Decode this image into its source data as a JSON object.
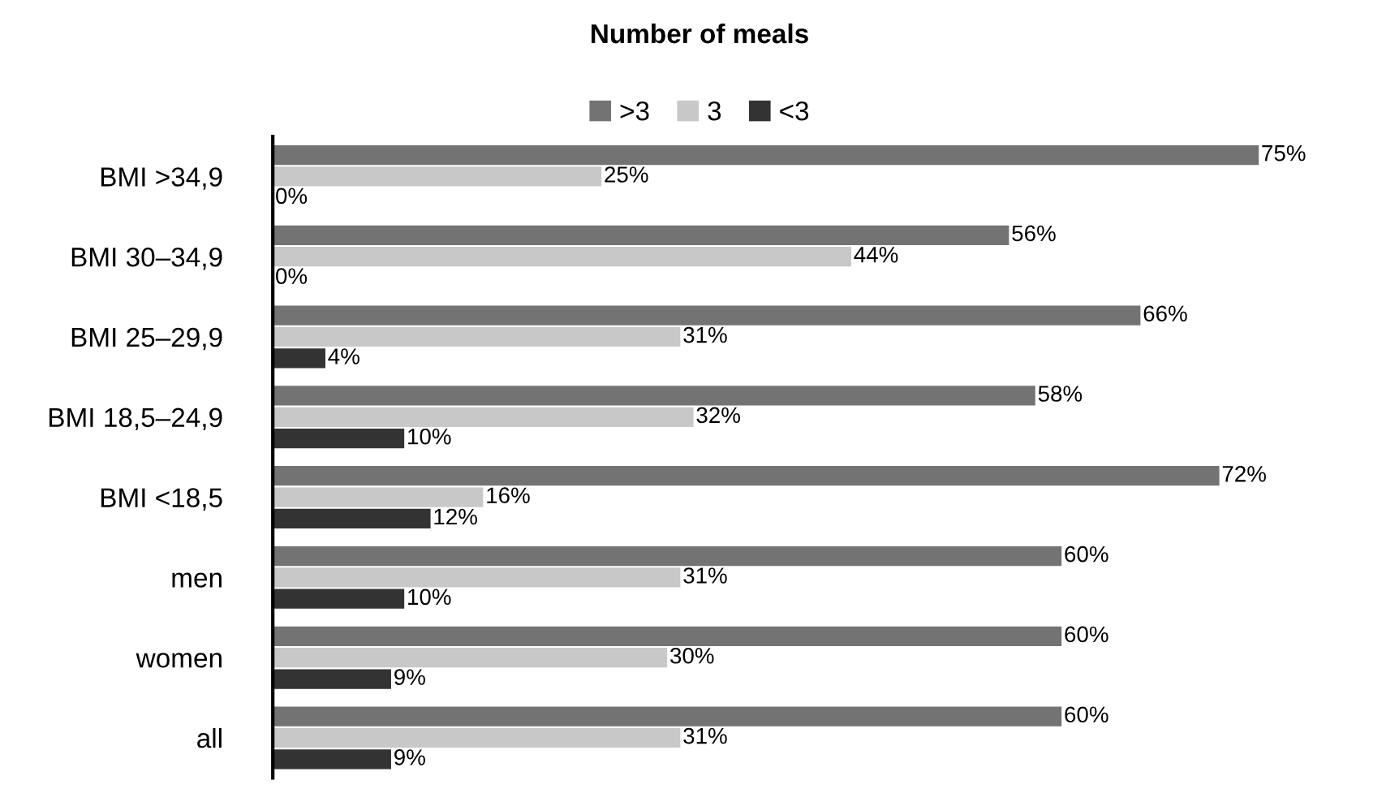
{
  "chart_data": {
    "type": "bar",
    "orientation": "horizontal",
    "title": "Number of meals",
    "categories": [
      "BMI >34,9",
      "BMI 30–34,9",
      "BMI 25–29,9",
      "BMI 18,5–24,9",
      "BMI <18,5",
      "men",
      "women",
      "all"
    ],
    "series": [
      {
        "name": ">3",
        "color": "#737373",
        "values": [
          75,
          56,
          66,
          58,
          72,
          60,
          60,
          60
        ],
        "value_labels": [
          "75%",
          "56%",
          "66%",
          "58%",
          "72%",
          "60%",
          "60%",
          "60%"
        ]
      },
      {
        "name": "3",
        "color": "#c8c8c8",
        "values": [
          25,
          44,
          31,
          32,
          16,
          31,
          30,
          31
        ],
        "value_labels": [
          "25%",
          "44%",
          "31%",
          "32%",
          "16%",
          "31%",
          "30%",
          "31%"
        ]
      },
      {
        "name": "<3",
        "color": "#333333",
        "values": [
          0,
          0,
          4,
          10,
          12,
          10,
          9,
          9
        ],
        "value_labels": [
          "0%",
          "0%",
          "4%",
          "10%",
          "12%",
          "10%",
          "9%",
          "9%"
        ]
      }
    ],
    "legend": "top",
    "grid": false,
    "tick_labels": "y"
  }
}
